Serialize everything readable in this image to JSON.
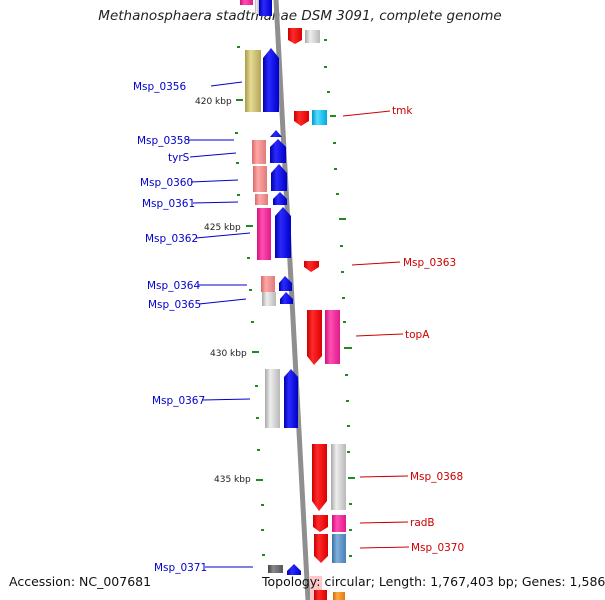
{
  "title": "Methanosphaera stadtmanae DSM 3091, complete genome",
  "footer": {
    "accession": "Accession: NC_007681",
    "summary": "Topology: circular; Length: 1,767,403 bp; Genes: 1,586"
  },
  "colors": {
    "backbone": "#8f8f8f",
    "tick": "#1f8a1f",
    "left_label": "#0000cc",
    "right_label": "#cc0000",
    "scale_label": "#222222"
  },
  "scale_labels": [
    "420 kbp",
    "425 kbp",
    "430 kbp",
    "435 kbp"
  ],
  "left_labels": [
    "Msp_0356",
    "Msp_0358",
    "tyrS",
    "Msp_0360",
    "Msp_0361",
    "Msp_0362",
    "Msp_0364",
    "Msp_0365",
    "Msp_0367",
    "Msp_0371"
  ],
  "right_labels": [
    "tmk",
    "Msp_0363",
    "topA",
    "Msp_0368",
    "radB",
    "Msp_0370"
  ]
}
